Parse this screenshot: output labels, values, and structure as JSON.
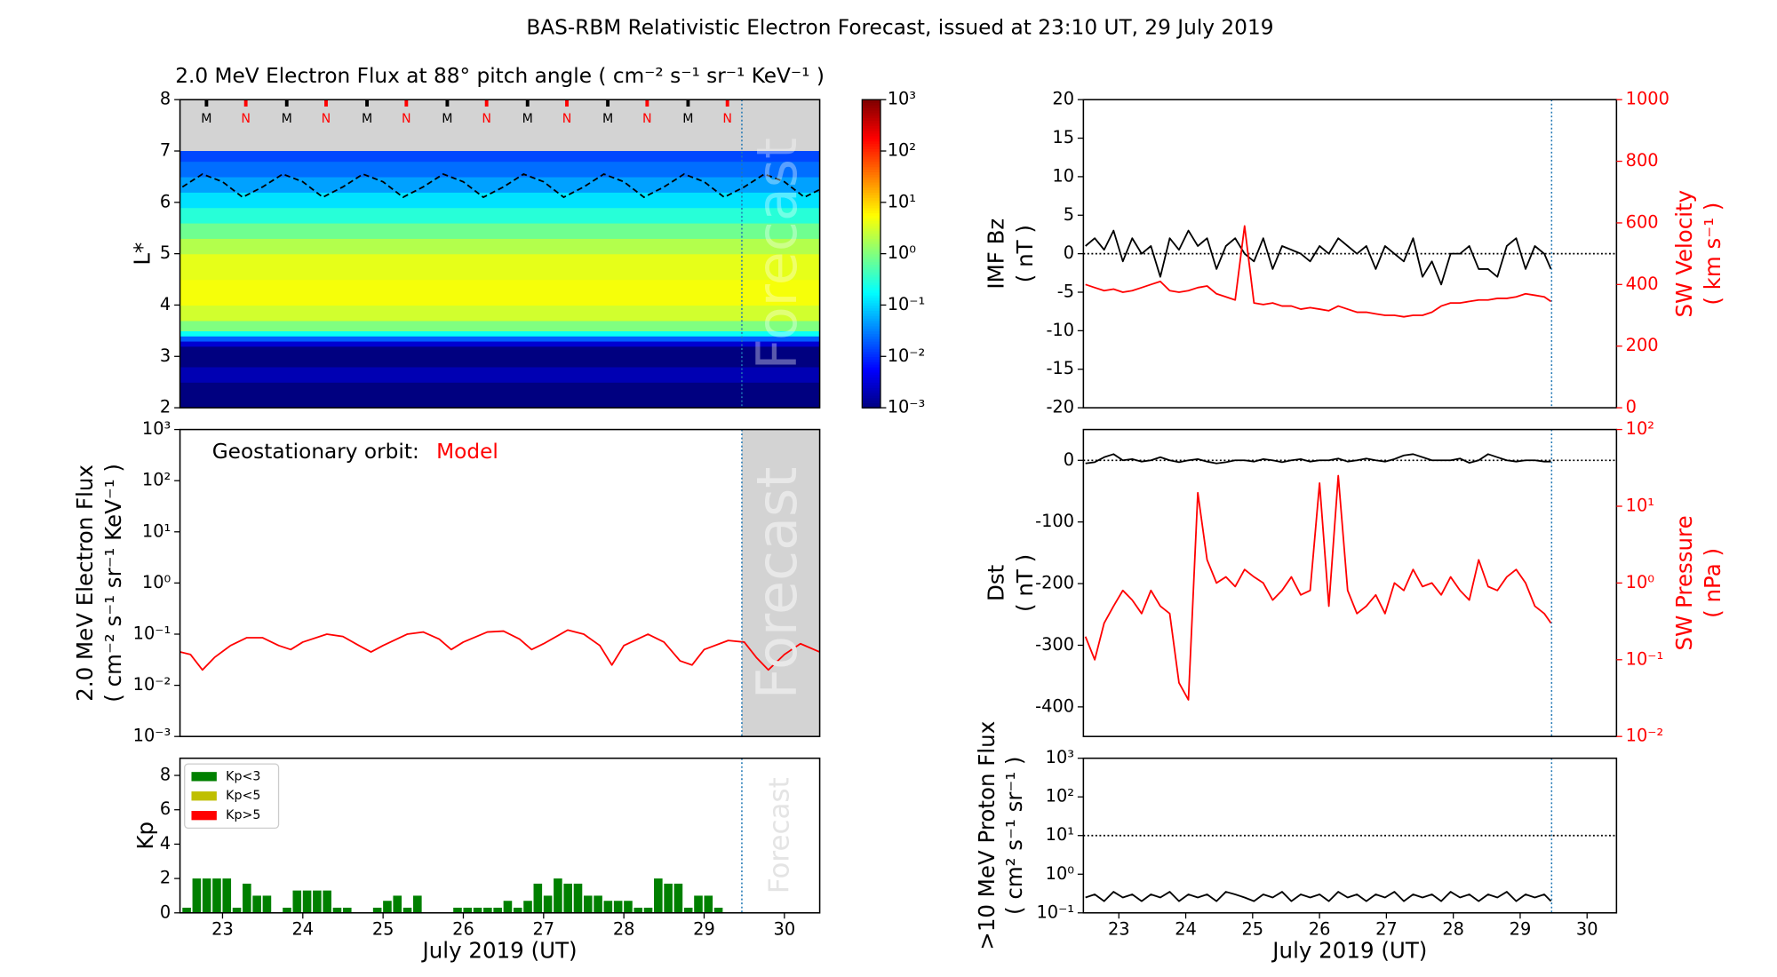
{
  "title": "BAS-RBM Relativistic Electron Forecast, issued at 23:10 UT, 29 July 2019",
  "forecast_start": 29.47,
  "forecast_label": "Forecast",
  "chart_data": [
    {
      "type": "heatmap",
      "title": "2.0 MeV Electron Flux at 88° pitch angle ( cm⁻² s⁻¹ sr⁻¹ KeV⁻¹ )",
      "ylabel": [
        "L*"
      ],
      "xlim": [
        22.47,
        30.44
      ],
      "ylim": [
        2,
        8
      ],
      "yticks": [
        2,
        3,
        4,
        5,
        6,
        7,
        8
      ],
      "L_edges": [
        2,
        2.5,
        2.8,
        3.2,
        3.3,
        3.4,
        3.5,
        3.7,
        4,
        4.5,
        5,
        5.3,
        5.6,
        5.9,
        6.2,
        6.5,
        6.8,
        7
      ],
      "flux": [
        0.001,
        0.002,
        0.001,
        0.003,
        0.02,
        0.2,
        1,
        3,
        5,
        4,
        2,
        0.8,
        0.3,
        0.12,
        0.05,
        0.025,
        0.015
      ],
      "colorbar": {
        "lim": [
          0.001,
          1000
        ],
        "ticks": [
          {
            "value": 0.001,
            "label": "10⁻³"
          },
          {
            "value": 0.01,
            "label": "10⁻²"
          },
          {
            "value": 0.1,
            "label": "10⁻¹"
          },
          {
            "value": 1,
            "label": "10⁰"
          },
          {
            "value": 10,
            "label": "10¹"
          },
          {
            "value": 100,
            "label": "10²"
          },
          {
            "value": 1000,
            "label": "10³"
          }
        ]
      },
      "geo_line": {
        "color": "#000000",
        "x": [
          22.5,
          22.75,
          23,
          23.25,
          23.5,
          23.75,
          24,
          24.25,
          24.5,
          24.75,
          25,
          25.25,
          25.5,
          25.75,
          26,
          26.25,
          26.5,
          26.75,
          27,
          27.25,
          27.5,
          27.75,
          28,
          28.25,
          28.5,
          28.75,
          29,
          29.25,
          29.5,
          29.75,
          30,
          30.25,
          30.44
        ],
        "values": [
          6.3,
          6.55,
          6.4,
          6.1,
          6.3,
          6.55,
          6.4,
          6.1,
          6.3,
          6.55,
          6.4,
          6.1,
          6.3,
          6.55,
          6.4,
          6.1,
          6.3,
          6.55,
          6.4,
          6.1,
          6.3,
          6.55,
          6.4,
          6.1,
          6.3,
          6.55,
          6.4,
          6.1,
          6.3,
          6.55,
          6.4,
          6.1,
          6.25
        ]
      },
      "markers": {
        "x": [
          22.8,
          23.29,
          23.8,
          24.29,
          24.8,
          25.29,
          25.8,
          26.29,
          26.8,
          27.29,
          27.8,
          28.29,
          28.8,
          29.29
        ],
        "labels": [
          "M",
          "N",
          "M",
          "N",
          "M",
          "N",
          "M",
          "N",
          "M",
          "N",
          "M",
          "N",
          "M",
          "N"
        ],
        "colors": {
          "M": "#000000",
          "N": "#ff0000"
        }
      }
    },
    {
      "type": "line",
      "ylog": true,
      "ylabel": [
        "2.0 MeV Electron Flux",
        "( cm⁻² s⁻¹ sr⁻¹ KeV⁻¹ )"
      ],
      "annotation": [
        "Geostationary orbit:",
        "Model"
      ],
      "annotation_colors": [
        "#000000",
        "#ff0000"
      ],
      "xlim": [
        22.47,
        30.44
      ],
      "ylim": [
        0.001,
        1000
      ],
      "yticks": [
        {
          "value": 0.001,
          "label": "10⁻³"
        },
        {
          "value": 0.01,
          "label": "10⁻²"
        },
        {
          "value": 0.1,
          "label": "10⁻¹"
        },
        {
          "value": 1,
          "label": "10⁰"
        },
        {
          "value": 10,
          "label": "10¹"
        },
        {
          "value": 100,
          "label": "10²"
        },
        {
          "value": 1000,
          "label": "10³"
        }
      ],
      "x": [
        22.47,
        22.6,
        22.75,
        22.9,
        23.1,
        23.3,
        23.5,
        23.7,
        23.85,
        24.0,
        24.3,
        24.5,
        24.7,
        24.85,
        25.0,
        25.3,
        25.5,
        25.7,
        25.85,
        26.0,
        26.3,
        26.5,
        26.7,
        26.85,
        27.0,
        27.3,
        27.5,
        27.7,
        27.85,
        28.0,
        28.3,
        28.5,
        28.7,
        28.85,
        29.0,
        29.3,
        29.5,
        29.65,
        29.8,
        30.0,
        30.2,
        30.44
      ],
      "series": [
        {
          "color": "#ff0000",
          "values": [
            0.045,
            0.04,
            0.02,
            0.035,
            0.06,
            0.085,
            0.085,
            0.06,
            0.05,
            0.07,
            0.1,
            0.09,
            0.06,
            0.045,
            0.06,
            0.1,
            0.11,
            0.08,
            0.05,
            0.07,
            0.11,
            0.115,
            0.08,
            0.05,
            0.065,
            0.12,
            0.1,
            0.06,
            0.025,
            0.06,
            0.1,
            0.07,
            0.03,
            0.025,
            0.05,
            0.075,
            0.07,
            0.035,
            0.02,
            0.04,
            0.065,
            0.045
          ]
        }
      ]
    },
    {
      "type": "bar",
      "ylabel": [
        "Kp"
      ],
      "xlabel": "July 2019 (UT)",
      "legend": "upper left",
      "xlim": [
        22.47,
        30.44
      ],
      "ylim": [
        0,
        9
      ],
      "yticks": [
        0,
        2,
        4,
        6,
        8
      ],
      "xticks": [
        23,
        24,
        25,
        26,
        27,
        28,
        29,
        30
      ],
      "x": [
        22.5,
        22.625,
        22.75,
        22.875,
        23,
        23.125,
        23.25,
        23.375,
        23.5,
        23.625,
        23.75,
        23.875,
        24,
        24.125,
        24.25,
        24.375,
        24.5,
        24.625,
        24.75,
        24.875,
        25,
        25.125,
        25.25,
        25.375,
        25.5,
        25.625,
        25.75,
        25.875,
        26,
        26.125,
        26.25,
        26.375,
        26.5,
        26.625,
        26.75,
        26.875,
        27,
        27.125,
        27.25,
        27.375,
        27.5,
        27.625,
        27.75,
        27.875,
        28,
        28.125,
        28.25,
        28.375,
        28.5,
        28.625,
        28.75,
        28.875,
        29,
        29.125
      ],
      "series": [
        {
          "name": "Kp<3",
          "color": "#008000",
          "values": [
            0.3,
            2,
            2,
            2,
            2,
            0.3,
            1.7,
            1,
            1,
            0,
            0.3,
            1.3,
            1.3,
            1.3,
            1.3,
            0.3,
            0.3,
            0,
            0,
            0.3,
            0.7,
            1,
            0.3,
            1,
            0,
            0,
            0,
            0.3,
            0.3,
            0.3,
            0.3,
            0.3,
            0.7,
            0.3,
            0.7,
            1.7,
            1,
            2,
            1.7,
            1.7,
            1,
            1,
            0.7,
            0.7,
            0.7,
            0.3,
            0.3,
            2,
            1.7,
            1.7,
            0.3,
            1,
            1,
            0.3
          ]
        },
        {
          "name": "Kp<5",
          "color": "#bfbf00",
          "values": [
            null,
            null,
            null,
            null,
            null,
            null,
            null,
            null,
            null,
            null,
            null,
            null,
            null,
            null,
            null,
            null,
            null,
            null,
            null,
            null,
            null,
            null,
            null,
            null,
            null,
            null,
            null,
            null,
            null,
            null,
            null,
            null,
            null,
            null,
            null,
            null,
            null,
            null,
            null,
            null,
            null,
            null,
            null,
            null,
            null,
            null,
            null,
            null,
            null,
            null,
            null,
            null,
            null,
            null
          ]
        },
        {
          "name": "Kp>5",
          "color": "#ff0000",
          "values": [
            null,
            null,
            null,
            null,
            null,
            null,
            null,
            null,
            null,
            null,
            null,
            null,
            null,
            null,
            null,
            null,
            null,
            null,
            null,
            null,
            null,
            null,
            null,
            null,
            null,
            null,
            null,
            null,
            null,
            null,
            null,
            null,
            null,
            null,
            null,
            null,
            null,
            null,
            null,
            null,
            null,
            null,
            null,
            null,
            null,
            null,
            null,
            null,
            null,
            null,
            null,
            null,
            null,
            null
          ]
        }
      ]
    },
    {
      "type": "line",
      "ylabel": [
        "IMF Bz",
        "( nT )"
      ],
      "y2label": [
        "SW Velocity",
        "( km s⁻¹ )"
      ],
      "reference_line": 0,
      "xlim": [
        22.47,
        30.44
      ],
      "ylim": [
        -20,
        20
      ],
      "yticks": [
        -20,
        -15,
        -10,
        -5,
        0,
        5,
        10,
        15,
        20
      ],
      "y2lim": [
        0,
        1000
      ],
      "y2ticks": [
        0,
        200,
        400,
        600,
        800,
        1000
      ],
      "x": [
        22.5,
        22.64,
        22.78,
        22.92,
        23.06,
        23.2,
        23.34,
        23.48,
        23.62,
        23.76,
        23.9,
        24.04,
        24.18,
        24.32,
        24.46,
        24.6,
        24.74,
        24.88,
        25.02,
        25.16,
        25.3,
        25.44,
        25.58,
        25.72,
        25.86,
        26.0,
        26.14,
        26.28,
        26.42,
        26.56,
        26.7,
        26.84,
        26.98,
        27.12,
        27.26,
        27.4,
        27.54,
        27.68,
        27.82,
        27.96,
        28.1,
        28.24,
        28.38,
        28.52,
        28.66,
        28.8,
        28.94,
        29.08,
        29.22,
        29.36,
        29.46
      ],
      "series": [
        {
          "color": "#000000",
          "values": [
            1,
            2,
            0.5,
            3,
            -1,
            2,
            0,
            1,
            -3,
            2,
            0.5,
            3,
            1,
            2,
            -2,
            1,
            2,
            0,
            -1,
            2,
            -2,
            1,
            0.5,
            0,
            -1,
            1,
            0,
            2,
            1,
            0,
            1,
            -2,
            1,
            0,
            -1,
            2,
            -3,
            -1,
            -4,
            0,
            0,
            1,
            -2,
            -2,
            -3,
            1,
            2,
            -2,
            1,
            0,
            -2
          ]
        },
        {
          "color": "#ff0000",
          "axis": "y2",
          "values": [
            400,
            390,
            380,
            385,
            375,
            380,
            390,
            400,
            410,
            380,
            375,
            380,
            390,
            395,
            370,
            360,
            350,
            590,
            340,
            335,
            340,
            330,
            330,
            320,
            325,
            320,
            315,
            330,
            320,
            310,
            310,
            305,
            300,
            300,
            295,
            300,
            300,
            310,
            330,
            340,
            340,
            345,
            350,
            350,
            355,
            355,
            360,
            370,
            365,
            360,
            345
          ]
        }
      ]
    },
    {
      "type": "line",
      "ylabel": [
        "Dst",
        "( nT )"
      ],
      "y2label": [
        "SW Pressure",
        "( nPa )"
      ],
      "reference_line": 0,
      "y2log": true,
      "xlim": [
        22.47,
        30.44
      ],
      "ylim": [
        -448,
        50
      ],
      "yticks": [
        0,
        -100,
        -200,
        -300,
        -400
      ],
      "y2lim": [
        0.01,
        100
      ],
      "y2ticks": [
        {
          "value": 0.01,
          "label": "10⁻²"
        },
        {
          "value": 0.1,
          "label": "10⁻¹"
        },
        {
          "value": 1,
          "label": "10⁰"
        },
        {
          "value": 10,
          "label": "10¹"
        },
        {
          "value": 100,
          "label": "10²"
        }
      ],
      "x": [
        22.5,
        22.64,
        22.78,
        22.92,
        23.06,
        23.2,
        23.34,
        23.48,
        23.62,
        23.76,
        23.9,
        24.04,
        24.18,
        24.32,
        24.46,
        24.6,
        24.74,
        24.88,
        25.02,
        25.16,
        25.3,
        25.44,
        25.58,
        25.72,
        25.86,
        26.0,
        26.14,
        26.28,
        26.42,
        26.56,
        26.7,
        26.84,
        26.98,
        27.12,
        27.26,
        27.4,
        27.54,
        27.68,
        27.82,
        27.96,
        28.1,
        28.24,
        28.38,
        28.52,
        28.66,
        28.8,
        28.94,
        29.08,
        29.22,
        29.36,
        29.46
      ],
      "series": [
        {
          "color": "#ff0000",
          "axis": "y2",
          "values": [
            0.2,
            0.1,
            0.3,
            0.5,
            0.8,
            0.6,
            0.4,
            0.8,
            0.5,
            0.4,
            0.05,
            0.03,
            15,
            2,
            1,
            1.2,
            0.9,
            1.5,
            1.2,
            1,
            0.6,
            0.8,
            1.2,
            0.7,
            0.8,
            20,
            0.5,
            25,
            0.8,
            0.4,
            0.5,
            0.7,
            0.4,
            1,
            0.8,
            1.5,
            0.9,
            1,
            0.7,
            1.2,
            0.8,
            0.6,
            2,
            0.9,
            0.8,
            1.2,
            1.5,
            1,
            0.5,
            0.4,
            0.3
          ]
        },
        {
          "color": "#000000",
          "values": [
            -5,
            -3,
            5,
            10,
            0,
            2,
            -2,
            0,
            5,
            0,
            -3,
            0,
            2,
            -2,
            -5,
            -3,
            0,
            0,
            -2,
            2,
            0,
            -3,
            0,
            2,
            -2,
            0,
            0,
            3,
            -2,
            0,
            3,
            0,
            -2,
            2,
            8,
            10,
            5,
            0,
            0,
            0,
            3,
            -4,
            0,
            10,
            5,
            0,
            -2,
            0,
            0,
            -2,
            -2
          ]
        }
      ]
    },
    {
      "type": "line",
      "ylog": true,
      "ylabel": [
        ">10 MeV Proton Flux",
        "( cm² s⁻¹ sr⁻¹ )"
      ],
      "xlabel": "July 2019 (UT)",
      "reference_line": 10,
      "xlim": [
        22.47,
        30.44
      ],
      "ylim": [
        0.1,
        1000
      ],
      "xticks": [
        23,
        24,
        25,
        26,
        27,
        28,
        29,
        30
      ],
      "yticks": [
        {
          "value": 0.1,
          "label": "10⁻¹"
        },
        {
          "value": 1,
          "label": "10⁰"
        },
        {
          "value": 10,
          "label": "10¹"
        },
        {
          "value": 100,
          "label": "10²"
        },
        {
          "value": 1000,
          "label": "10³"
        }
      ],
      "x": [
        22.5,
        22.64,
        22.78,
        22.92,
        23.06,
        23.2,
        23.34,
        23.48,
        23.62,
        23.76,
        23.9,
        24.04,
        24.18,
        24.32,
        24.46,
        24.6,
        24.74,
        24.88,
        25.02,
        25.16,
        25.3,
        25.44,
        25.58,
        25.72,
        25.86,
        26.0,
        26.14,
        26.28,
        26.42,
        26.56,
        26.7,
        26.84,
        26.98,
        27.12,
        27.26,
        27.4,
        27.54,
        27.68,
        27.82,
        27.96,
        28.1,
        28.24,
        28.38,
        28.52,
        28.66,
        28.8,
        28.94,
        29.08,
        29.22,
        29.36,
        29.46
      ],
      "series": [
        {
          "color": "#000000",
          "values": [
            0.25,
            0.3,
            0.2,
            0.35,
            0.25,
            0.3,
            0.2,
            0.3,
            0.25,
            0.35,
            0.2,
            0.3,
            0.25,
            0.3,
            0.2,
            0.35,
            0.3,
            0.25,
            0.2,
            0.3,
            0.25,
            0.35,
            0.2,
            0.3,
            0.25,
            0.3,
            0.2,
            0.35,
            0.25,
            0.3,
            0.2,
            0.3,
            0.25,
            0.35,
            0.2,
            0.3,
            0.25,
            0.3,
            0.2,
            0.35,
            0.25,
            0.3,
            0.2,
            0.3,
            0.25,
            0.35,
            0.2,
            0.3,
            0.25,
            0.3,
            0.2
          ]
        }
      ]
    }
  ]
}
